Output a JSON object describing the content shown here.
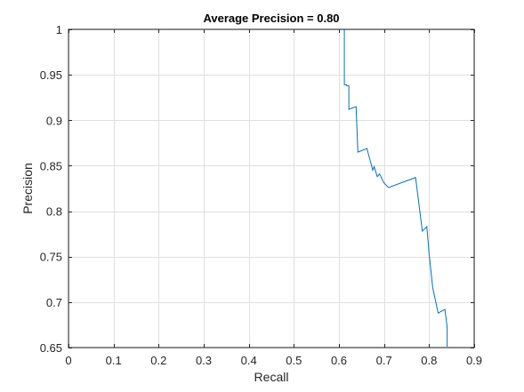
{
  "chart_data": {
    "type": "line",
    "title": "Average Precision = 0.80",
    "xlabel": "Recall",
    "ylabel": "Precision",
    "xlim": [
      0,
      0.9
    ],
    "ylim": [
      0.65,
      1.0
    ],
    "xticks": [
      0,
      0.1,
      0.2,
      0.3,
      0.4,
      0.5,
      0.6,
      0.7,
      0.8,
      0.9
    ],
    "xtick_labels": [
      "0",
      "0.1",
      "0.2",
      "0.3",
      "0.4",
      "0.5",
      "0.6",
      "0.7",
      "0.8",
      "0.9"
    ],
    "yticks": [
      0.65,
      0.7,
      0.75,
      0.8,
      0.85,
      0.9,
      0.95,
      1.0
    ],
    "ytick_labels": [
      "0.65",
      "0.7",
      "0.75",
      "0.8",
      "0.85",
      "0.9",
      "0.95",
      "1"
    ],
    "grid": true,
    "series_color": "#0072bd",
    "series": [
      {
        "x": [
          0,
          0.607,
          0.607,
          0.612,
          0.612,
          0.617,
          0.617,
          0.622,
          0.622,
          0.638,
          0.638,
          0.642,
          0.642,
          0.662,
          0.662,
          0.675,
          0.675,
          0.678,
          0.678,
          0.685,
          0.685,
          0.69,
          0.69,
          0.7,
          0.7,
          0.71,
          0.71,
          0.77,
          0.77,
          0.785,
          0.785,
          0.795,
          0.795,
          0.8,
          0.8,
          0.808,
          0.808,
          0.82,
          0.82,
          0.835,
          0.835,
          0.84,
          0.84
        ],
        "y": [
          1.0,
          1.0,
          1.0,
          1.0,
          0.939,
          0.939,
          0.938,
          0.938,
          0.912,
          0.915,
          0.915,
          0.865,
          0.865,
          0.869,
          0.869,
          0.845,
          0.845,
          0.849,
          0.849,
          0.838,
          0.838,
          0.841,
          0.841,
          0.831,
          0.831,
          0.826,
          0.826,
          0.837,
          0.837,
          0.778,
          0.778,
          0.783,
          0.783,
          0.753,
          0.753,
          0.716,
          0.716,
          0.688,
          0.688,
          0.692,
          0.692,
          0.673,
          0.651
        ]
      }
    ]
  }
}
